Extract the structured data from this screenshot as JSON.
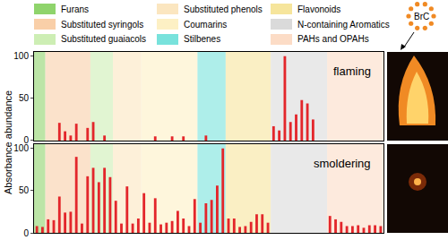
{
  "chart_data": [
    {
      "type": "bar",
      "title": "flaming",
      "categories": [
        null,
        null,
        null,
        null,
        null,
        null,
        null,
        null,
        null,
        null,
        null,
        null,
        null,
        null,
        null,
        null,
        null,
        null,
        null,
        null,
        null,
        null,
        null,
        null,
        null,
        null,
        null,
        null,
        null,
        null,
        null,
        null,
        null,
        null,
        null,
        null,
        null,
        null,
        null,
        null,
        null,
        null,
        null,
        null,
        null,
        null,
        null,
        null,
        null,
        null,
        null,
        null,
        null,
        null,
        null,
        null,
        null,
        null,
        null,
        null,
        null,
        null
      ],
      "values": [
        0,
        0,
        0,
        0,
        21,
        11,
        6,
        20,
        0,
        15,
        22,
        0,
        6,
        0,
        0,
        0,
        0,
        0,
        0,
        0,
        0,
        5,
        0,
        0,
        5,
        0,
        5,
        0,
        0,
        0,
        6,
        0,
        0,
        0,
        0,
        0,
        0,
        0,
        0,
        0,
        0,
        0,
        17,
        12,
        100,
        22,
        31,
        48,
        44,
        25,
        0,
        0,
        0,
        0,
        0,
        0,
        0,
        0,
        0,
        0,
        0,
        0
      ],
      "color": "#e3262b",
      "ylim": [
        0,
        105
      ],
      "yticks": [
        0,
        50,
        100
      ],
      "tick_labels": "y"
    },
    {
      "type": "bar",
      "title": "smoldering",
      "categories": [
        null,
        null,
        null,
        null,
        null,
        null,
        null,
        null,
        null,
        null,
        null,
        null,
        null,
        null,
        null,
        null,
        null,
        null,
        null,
        null,
        null,
        null,
        null,
        null,
        null,
        null,
        null,
        null,
        null,
        null,
        null,
        null,
        null,
        null,
        null,
        null,
        null,
        null,
        null,
        null,
        null,
        null,
        null,
        null,
        null,
        null,
        null,
        null,
        null,
        null,
        null,
        null,
        null,
        null,
        null,
        null,
        null,
        null,
        null,
        null,
        null,
        null
      ],
      "values": [
        8,
        7,
        16,
        15,
        43,
        24,
        25,
        90,
        11,
        67,
        77,
        60,
        77,
        66,
        38,
        11,
        55,
        11,
        17,
        47,
        12,
        41,
        10,
        12,
        14,
        26,
        17,
        8,
        40,
        12,
        35,
        39,
        56,
        100,
        17,
        17,
        7,
        8,
        13,
        22,
        22,
        12,
        0,
        0,
        0,
        0,
        0,
        0,
        0,
        0,
        0,
        0,
        20,
        16,
        13,
        8,
        8,
        9,
        6,
        9,
        9,
        8
      ],
      "color": "#e3262b",
      "ylim": [
        0,
        105
      ],
      "yticks": [
        0,
        50,
        100
      ],
      "tick_labels": "y"
    }
  ],
  "ylabel": "Absorbance abundance",
  "groups": [
    {
      "name": "Furans",
      "color": "#8fd46c",
      "from": 0,
      "to": 1
    },
    {
      "name": "Substituted syringols",
      "color": "#f9cfa8",
      "from": 2,
      "to": 9
    },
    {
      "name": "Substituted guaiacols",
      "color": "#cdeeb4",
      "from": 10,
      "to": 13
    },
    {
      "name": "Substituted phenols",
      "color": "#fbe6c0",
      "from": 14,
      "to": 18
    },
    {
      "name": "Coumarins",
      "color": "#fdf0c4",
      "from": 19,
      "to": 28
    },
    {
      "name": "Stilbenes",
      "color": "#78e2dc",
      "from": 29,
      "to": 33
    },
    {
      "name": "Flavonoids",
      "color": "#f6e59c",
      "from": 34,
      "to": 41
    },
    {
      "name": "N-containing Aromatics",
      "color": "#dadada",
      "from": 42,
      "to": 51
    },
    {
      "name": "PAHs and OPAHs",
      "color": "#fcdcc6",
      "from": 52,
      "to": 61
    }
  ],
  "icon_label": "BrC"
}
